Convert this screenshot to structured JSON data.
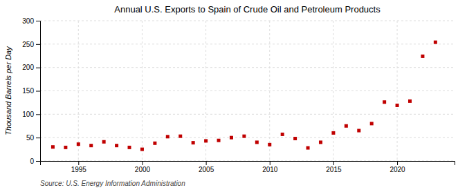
{
  "chart_data": {
    "type": "scatter",
    "title": "Annual U.S. Exports to Spain of Crude Oil and Petroleum Products",
    "ylabel": "Thousand Barrels per Day",
    "source": "Source: U.S. Energy Information Administration",
    "x": [
      1993,
      1994,
      1995,
      1996,
      1997,
      1998,
      1999,
      2000,
      2001,
      2002,
      2003,
      2004,
      2005,
      2006,
      2007,
      2008,
      2009,
      2010,
      2011,
      2012,
      2013,
      2014,
      2015,
      2016,
      2017,
      2018,
      2019,
      2020,
      2021,
      2022,
      2023
    ],
    "values": [
      30,
      29,
      36,
      33,
      41,
      33,
      29,
      25,
      38,
      52,
      53,
      39,
      43,
      44,
      50,
      53,
      40,
      35,
      57,
      48,
      28,
      40,
      60,
      75,
      65,
      80,
      126,
      119,
      128,
      224,
      254
    ],
    "color": "#c00000",
    "marker": "square",
    "xlim": [
      1992.0,
      2024.5
    ],
    "xticks": [
      1995,
      2000,
      2005,
      2010,
      2015,
      2020
    ],
    "ylim": [
      0,
      300
    ],
    "yticks": [
      0,
      50,
      100,
      150,
      200,
      250,
      300
    ],
    "grid": true
  }
}
